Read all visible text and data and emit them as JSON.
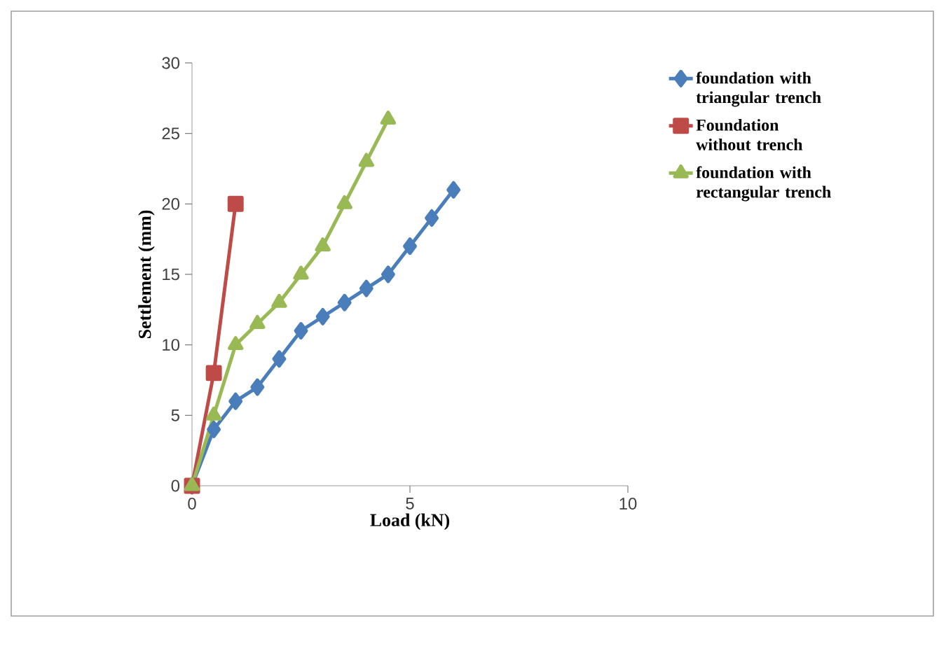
{
  "chart_data": {
    "type": "line",
    "xlabel": "Load (kN)",
    "ylabel": "Settlement (mm)",
    "xlim": [
      0,
      10
    ],
    "ylim": [
      0,
      30
    ],
    "xticks": [
      0,
      5,
      10
    ],
    "yticks": [
      0,
      5,
      10,
      15,
      20,
      25,
      30
    ],
    "grid": false,
    "legend": "right",
    "line_style": "solid",
    "series": [
      {
        "name": "foundation with triangular trench",
        "color": "#4a7ebb",
        "marker": "diamond",
        "x": [
          0,
          0.5,
          1,
          1.5,
          2,
          2.5,
          3,
          3.5,
          4,
          4.5,
          5,
          5.5,
          6
        ],
        "values": [
          0,
          4,
          6,
          7,
          9,
          11,
          12,
          13,
          14,
          15,
          17,
          19,
          21
        ]
      },
      {
        "name": "Foundation without trench",
        "color": "#be4b48",
        "marker": "square",
        "x": [
          0,
          0.5,
          1
        ],
        "values": [
          0,
          8,
          20
        ]
      },
      {
        "name": "foundation with rectangular trench",
        "color": "#98b954",
        "marker": "triangle",
        "x": [
          0,
          0.5,
          1,
          1.5,
          2,
          2.5,
          3,
          3.5,
          4,
          4.5
        ],
        "values": [
          0,
          5,
          10,
          11.5,
          13,
          15,
          17,
          20,
          23,
          26
        ]
      }
    ]
  }
}
